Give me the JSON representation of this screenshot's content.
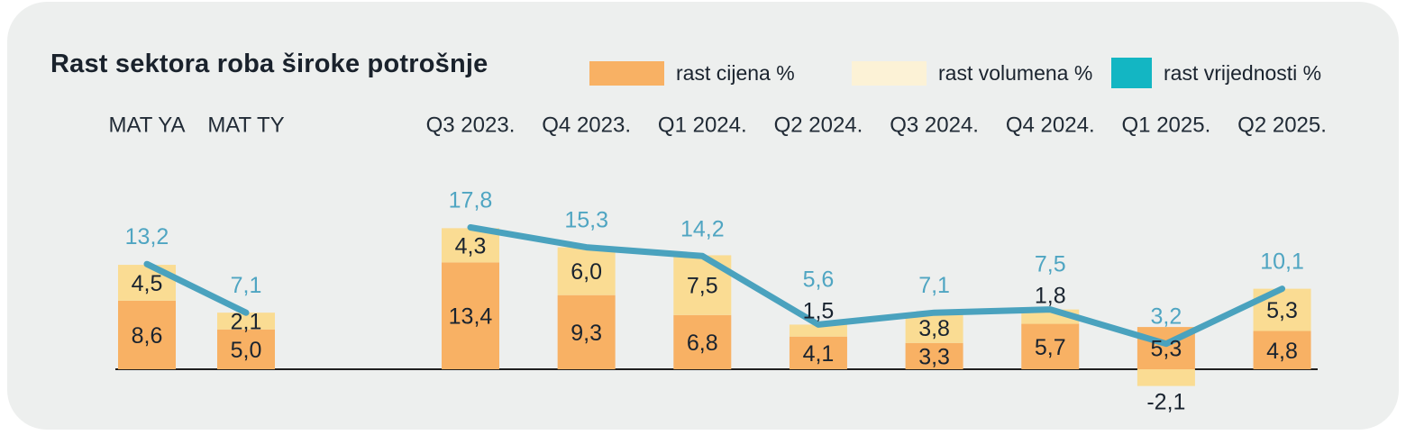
{
  "title": "Rast sektora roba široke potrošnje",
  "legend": [
    {
      "id": "price",
      "label": "rast cijena %",
      "color": "#F8B164"
    },
    {
      "id": "volume",
      "label": "rast volumena %",
      "color": "#FCF2D6"
    },
    {
      "id": "value",
      "label": "rast vrijednosti %",
      "color": "#13B6C3"
    }
  ],
  "colors": {
    "price_bar": "#F8B164",
    "volume_bar": "#FADC93",
    "value_line": "#4AA2BE",
    "value_label": "#4FA5C2",
    "text_dark": "#19232F",
    "category_text": "#212B36",
    "axis": "#1F1F1F",
    "card_bg": "#EDEFEE",
    "page_bg": "#FFFFFF"
  },
  "chart_data": {
    "type": "stacked_bar_line_combo",
    "title": "Rast sektora roba široke potrošnje",
    "categories": [
      "MAT YA",
      "MAT TY",
      "Q3 2023.",
      "Q4 2023.",
      "Q1 2024.",
      "Q2 2024.",
      "Q3 2024.",
      "Q4 2024.",
      "Q1 2025.",
      "Q2 2025."
    ],
    "series": [
      {
        "name": "rast cijena %",
        "type": "bar",
        "stack": true,
        "values": [
          8.6,
          5.0,
          13.4,
          9.3,
          6.8,
          4.1,
          3.3,
          5.7,
          5.3,
          4.8
        ],
        "labels": [
          "8,6",
          "5,0",
          "13,4",
          "9,3",
          "6,8",
          "4,1",
          "3,3",
          "5,7",
          "5,3",
          "4,8"
        ]
      },
      {
        "name": "rast volumena %",
        "type": "bar",
        "stack": true,
        "values": [
          4.5,
          2.1,
          4.3,
          6.0,
          7.5,
          1.5,
          3.8,
          1.8,
          -2.1,
          5.3
        ],
        "labels": [
          "4,5",
          "2,1",
          "4,3",
          "6,0",
          "7,5",
          "1,5",
          "3,8",
          "1,8",
          "-2,1",
          "5,3"
        ]
      },
      {
        "name": "rast vrijednosti %",
        "type": "line",
        "values": [
          13.2,
          7.1,
          17.8,
          15.3,
          14.2,
          5.6,
          7.1,
          7.5,
          3.2,
          10.1
        ],
        "labels": [
          "13,2",
          "7,1",
          "17,8",
          "15,3",
          "14,2",
          "5,6",
          "7,1",
          "7,5",
          "3,2",
          "10,1"
        ]
      }
    ],
    "line_groups": [
      [
        0,
        1
      ],
      [
        2,
        3,
        4,
        5,
        6,
        7,
        8,
        9
      ]
    ],
    "xlabel": "",
    "ylabel": "",
    "ylim": [
      -2.5,
      18
    ],
    "grid": false,
    "legend_position": "top-right",
    "value_labels_shown": true
  }
}
